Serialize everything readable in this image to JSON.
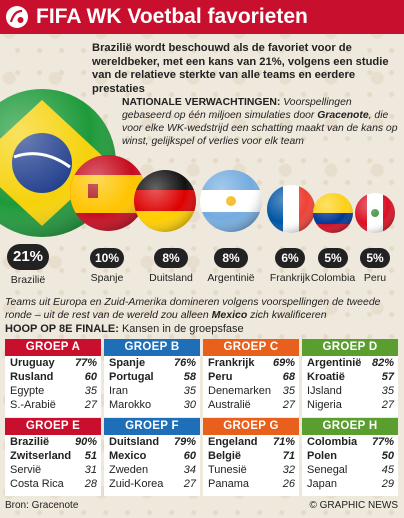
{
  "header": {
    "title": "FIFA WK Voetbal favorieten"
  },
  "intro": "Brazilië wordt beschouwd als de favoriet voor de wereldbeker, met een kans van 21%, volgens een studie van de relatieve sterkte van alle teams en eerdere prestaties",
  "nat": {
    "label": "NATIONALE VERWACHTINGEN:",
    "text1": "Voorspellingen gebaseerd op één miljoen simulaties door",
    "company": "Gracenote",
    "text2": ", die voor elke WK-wedstrijd een schatting maakt van de kans op winst, gelijkspel of verlies voor elk team"
  },
  "chart_data": {
    "type": "bar",
    "title": "FIFA WK Voetbal favorieten",
    "categories": [
      "Brazilië",
      "Spanje",
      "Duitsland",
      "Argentinië",
      "Frankrijk",
      "Colombia",
      "Peru"
    ],
    "values": [
      21,
      10,
      8,
      8,
      6,
      5,
      5
    ],
    "labels": [
      "21%",
      "10%",
      "8%",
      "8%",
      "6%",
      "5%",
      "5%"
    ],
    "unit": "%"
  },
  "note": {
    "text1": "Teams uit Europa en Zuid-Amerika domineren volgens voorspellingen de tweede ronde – uit de rest van de wereld zou alleen",
    "keyword": "Mexico",
    "text2": "zich kwalificeren"
  },
  "groups_heading": {
    "bold": "Hoop op 8e finale:",
    "rest": "Kansen in de groepsfase"
  },
  "groups": [
    {
      "name": "GROEP A",
      "color": "#c8102e",
      "rows": [
        {
          "team": "Uruguay",
          "pct": "77%",
          "q": true
        },
        {
          "team": "Rusland",
          "pct": "60",
          "q": true
        },
        {
          "team": "Egypte",
          "pct": "35",
          "q": false
        },
        {
          "team": "S.-Arabië",
          "pct": "27",
          "q": false
        }
      ]
    },
    {
      "name": "GROEP B",
      "color": "#1e6fb8",
      "rows": [
        {
          "team": "Spanje",
          "pct": "76%",
          "q": true
        },
        {
          "team": "Portugal",
          "pct": "58",
          "q": true
        },
        {
          "team": "Iran",
          "pct": "35",
          "q": false
        },
        {
          "team": "Marokko",
          "pct": "30",
          "q": false
        }
      ]
    },
    {
      "name": "GROEP C",
      "color": "#e8601c",
      "rows": [
        {
          "team": "Frankrijk",
          "pct": "69%",
          "q": true
        },
        {
          "team": "Peru",
          "pct": "68",
          "q": true
        },
        {
          "team": "Denemarken",
          "pct": "35",
          "q": false
        },
        {
          "team": "Australië",
          "pct": "27",
          "q": false
        }
      ]
    },
    {
      "name": "GROEP D",
      "color": "#5a9e2f",
      "rows": [
        {
          "team": "Argentinië",
          "pct": "82%",
          "q": true
        },
        {
          "team": "Kroatië",
          "pct": "57",
          "q": true
        },
        {
          "team": "IJsland",
          "pct": "35",
          "q": false
        },
        {
          "team": "Nigeria",
          "pct": "27",
          "q": false
        }
      ]
    },
    {
      "name": "GROEP E",
      "color": "#c8102e",
      "rows": [
        {
          "team": "Brazilië",
          "pct": "90%",
          "q": true
        },
        {
          "team": "Zwitserland",
          "pct": "51",
          "q": true
        },
        {
          "team": "Servië",
          "pct": "31",
          "q": false
        },
        {
          "team": "Costa Rica",
          "pct": "28",
          "q": false
        }
      ]
    },
    {
      "name": "GROEP F",
      "color": "#1e6fb8",
      "rows": [
        {
          "team": "Duitsland",
          "pct": "79%",
          "q": true
        },
        {
          "team": "Mexico",
          "pct": "60",
          "q": true
        },
        {
          "team": "Zweden",
          "pct": "34",
          "q": false
        },
        {
          "team": "Zuid-Korea",
          "pct": "27",
          "q": false
        }
      ]
    },
    {
      "name": "GROEP G",
      "color": "#e8601c",
      "rows": [
        {
          "team": "Engeland",
          "pct": "71%",
          "q": true
        },
        {
          "team": "België",
          "pct": "71",
          "q": true
        },
        {
          "team": "Tunesië",
          "pct": "32",
          "q": false
        },
        {
          "team": "Panama",
          "pct": "26",
          "q": false
        }
      ]
    },
    {
      "name": "GROEP H",
      "color": "#5a9e2f",
      "rows": [
        {
          "team": "Colombia",
          "pct": "77%",
          "q": true
        },
        {
          "team": "Polen",
          "pct": "50",
          "q": true
        },
        {
          "team": "Senegal",
          "pct": "45",
          "q": false
        },
        {
          "team": "Japan",
          "pct": "29",
          "q": false
        }
      ]
    }
  ],
  "footer": {
    "source": "Bron: Gracenote",
    "credit": "© GRAPHIC NEWS"
  },
  "colors": {
    "brand_red": "#c8102e",
    "blue": "#1e6fb8",
    "orange": "#e8601c",
    "green": "#5a9e2f",
    "pill": "#222222"
  },
  "icons": [
    "soccer-ball-logo-icon",
    "flag-ball-icon"
  ]
}
